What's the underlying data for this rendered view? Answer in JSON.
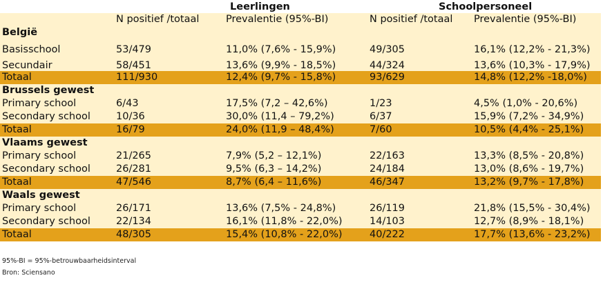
{
  "header": {
    "group_leerlingen": "Leerlingen",
    "group_schoolpersoneel": "Schoolpersoneel",
    "col_n": "N positief /totaal",
    "col_prev": "Prevalentie (95%-BI)",
    "col_n2": "N positief /totaal",
    "col_prev2": "Prevalentie (95%-BI)"
  },
  "sections": [
    {
      "title": "België",
      "rows": [
        {
          "label": "Basisschool",
          "n1": "53/479",
          "p1": "11,0% (7,6% - 15,9%)",
          "n2": "49/305",
          "p2": "16,1% (12,2% - 21,3%)"
        },
        {
          "label": "Secundair",
          "n1": "58/451",
          "p1": "13,6% (9,9% - 18,5%)",
          "n2": "44/324",
          "p2": "13,6% (10,3% - 17,9%)"
        }
      ],
      "total": {
        "label": "Totaal",
        "n1": "111/930",
        "p1": "12,4% (9,7% - 15,8%)",
        "n2": "93/629",
        "p2": "14,8% (12,2% -18,0%)"
      }
    },
    {
      "title": "Brussels gewest",
      "rows": [
        {
          "label": "Primary school",
          "n1": "6/43",
          "p1": "17,5% (7,2 – 42,6%)",
          "n2": "1/23",
          "p2": "4,5% (1,0% - 20,6%)"
        },
        {
          "label": "Secondary school",
          "n1": "10/36",
          "p1": "30,0% (11,4 – 79,2%)",
          "n2": "6/37",
          "p2": "15,9% (7,2% - 34,9%)"
        }
      ],
      "total": {
        "label": "Totaal",
        "n1": "16/79",
        "p1": "24,0% (11,9 – 48,4%)",
        "n2": "7/60",
        "p2": "10,5% (4,4% - 25,1%)"
      }
    },
    {
      "title": "Vlaams gewest",
      "rows": [
        {
          "label": "Primary school",
          "n1": "21/265",
          "p1": "7,9% (5,2 – 12,1%)",
          "n2": "22/163",
          "p2": "13,3% (8,5% - 20,8%)"
        },
        {
          "label": "Secondary school",
          "n1": "26/281",
          "p1": "9,5% (6,3 – 14,2%)",
          "n2": "24/184",
          "p2": "13,0% (8,6% - 19,7%)"
        }
      ],
      "total": {
        "label": "Totaal",
        "n1": "47/546",
        "p1": "8,7% (6,4 – 11,6%)",
        "n2": "46/347",
        "p2": "13,2% (9,7% - 17,8%)"
      }
    },
    {
      "title": "Waals gewest",
      "rows": [
        {
          "label": "Primary school",
          "n1": "26/171",
          "p1": "13,6% (7,5% - 24,8%)",
          "n2": "26/119",
          "p2": "21,8% (15,5% - 30,4%)"
        },
        {
          "label": "Secondary school",
          "n1": "22/134",
          "p1": "16,1% (11,8% - 22,0%)",
          "n2": "14/103",
          "p2": "12,7% (8,9% - 18,1%)"
        }
      ],
      "total": {
        "label": "Totaal",
        "n1": "48/305",
        "p1": "15,4% (10,8% - 22,0%)",
        "n2": "40/222",
        "p2": "17,7% (13,6% - 23,2%)"
      }
    }
  ],
  "footer": {
    "note": "95%-BI = 95%-betrouwbaarheidsinterval",
    "source": "Bron: Sciensano"
  },
  "colors": {
    "row_bg": "#fff2cc",
    "total_bg": "#e4a11b"
  }
}
